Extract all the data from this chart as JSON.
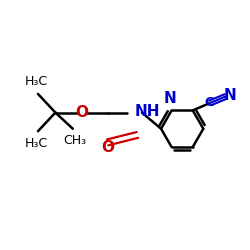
{
  "bg_color": "#ffffff",
  "atom_colors": {
    "C": "#000000",
    "N": "#0000cc",
    "O": "#cc0000"
  },
  "bond_color": "#000000",
  "figsize": [
    2.5,
    2.5
  ],
  "dpi": 100,
  "xlim": [
    0,
    10
  ],
  "ylim": [
    0,
    10
  ]
}
